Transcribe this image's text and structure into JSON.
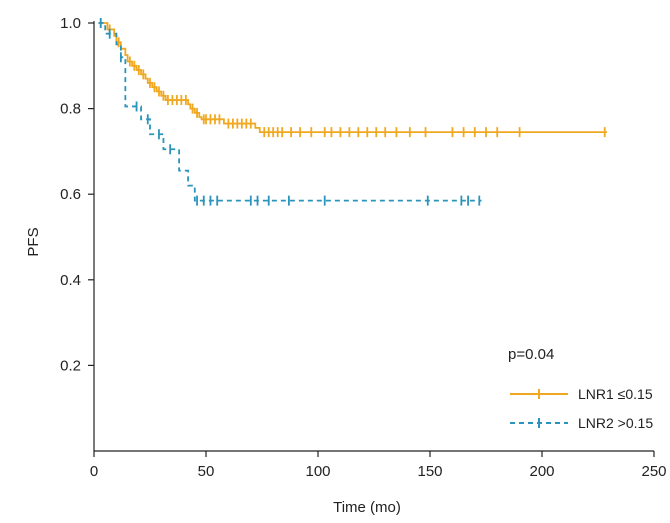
{
  "chart_data": {
    "type": "line",
    "subtype": "kaplan-meier step curves with censor marks",
    "xlabel": "Time (mo)",
    "ylabel": "PFS",
    "xlim": [
      0,
      250
    ],
    "ylim": [
      0,
      1.0
    ],
    "x_ticks": [
      "0",
      "50",
      "100",
      "150",
      "200",
      "250"
    ],
    "x_tick_values": [
      0,
      50,
      100,
      150,
      200,
      250
    ],
    "y_ticks": [
      "0.2",
      "0.4",
      "0.6",
      "0.8",
      "1.0"
    ],
    "y_tick_values": [
      0.2,
      0.4,
      0.6,
      0.8,
      1.0
    ],
    "grid": false,
    "legend_position": "bottom-right",
    "annotation": "p=0.04",
    "series": [
      {
        "name": "LNR1 ≤0.15",
        "color": "#F0A820",
        "dash": "solid",
        "steps": [
          [
            2,
            1.0
          ],
          [
            6,
            0.985
          ],
          [
            9,
            0.97
          ],
          [
            10,
            0.955
          ],
          [
            12,
            0.94
          ],
          [
            14,
            0.925
          ],
          [
            15,
            0.91
          ],
          [
            17,
            0.9
          ],
          [
            19,
            0.89
          ],
          [
            21,
            0.88
          ],
          [
            23,
            0.87
          ],
          [
            24,
            0.86
          ],
          [
            26,
            0.85
          ],
          [
            28,
            0.84
          ],
          [
            30,
            0.83
          ],
          [
            32,
            0.82
          ],
          [
            42,
            0.81
          ],
          [
            43,
            0.8
          ],
          [
            45,
            0.79
          ],
          [
            47,
            0.78
          ],
          [
            48,
            0.775
          ],
          [
            58,
            0.765
          ],
          [
            72,
            0.755
          ],
          [
            74,
            0.745
          ],
          [
            229,
            0.745
          ]
        ],
        "censor": [
          3,
          7,
          11,
          16,
          18,
          20,
          22,
          25,
          27,
          29,
          31,
          33,
          35,
          37,
          39,
          41,
          44,
          46,
          49,
          50,
          52,
          54,
          56,
          60,
          62,
          64,
          66,
          68,
          70,
          76,
          78,
          80,
          82,
          84,
          88,
          92,
          97,
          103,
          106,
          110,
          114,
          118,
          122,
          126,
          130,
          135,
          141,
          148,
          160,
          165,
          170,
          175,
          180,
          190,
          228
        ]
      },
      {
        "name": "LNR2 >0.15",
        "color": "#2A94BC",
        "dash": "dashed",
        "steps": [
          [
            2,
            1.0
          ],
          [
            5,
            0.975
          ],
          [
            10,
            0.95
          ],
          [
            12,
            0.92
          ],
          [
            14,
            0.805
          ],
          [
            21,
            0.775
          ],
          [
            25,
            0.74
          ],
          [
            31,
            0.705
          ],
          [
            38,
            0.655
          ],
          [
            42,
            0.62
          ],
          [
            45,
            0.585
          ],
          [
            173,
            0.585
          ]
        ],
        "censor": [
          3,
          7,
          12,
          19,
          24,
          29,
          34,
          46,
          49,
          52,
          55,
          70,
          73,
          78,
          87,
          103,
          149,
          164,
          167,
          172
        ]
      }
    ]
  }
}
